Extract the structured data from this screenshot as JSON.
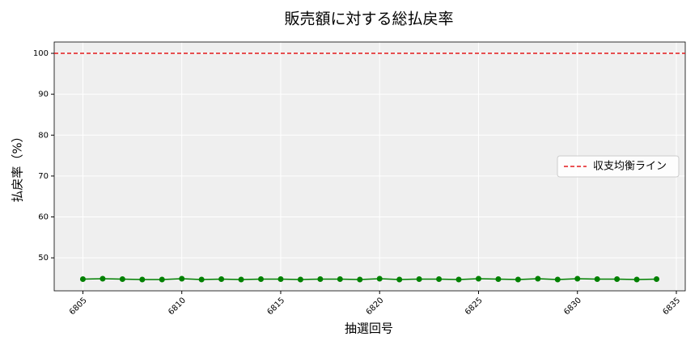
{
  "chart_data": {
    "type": "line",
    "title": "販売額に対する総払戻率",
    "x_label": "抽選回号",
    "y_label": "払戻率（%）",
    "x": [
      6805,
      6806,
      6807,
      6808,
      6809,
      6810,
      6811,
      6812,
      6813,
      6814,
      6815,
      6816,
      6817,
      6818,
      6819,
      6820,
      6821,
      6822,
      6823,
      6824,
      6825,
      6826,
      6827,
      6828,
      6829,
      6830,
      6831,
      6832,
      6833,
      6834
    ],
    "series": [
      {
        "color": "#008000",
        "values": [
          44.8,
          44.9,
          44.8,
          44.7,
          44.7,
          44.9,
          44.7,
          44.8,
          44.7,
          44.8,
          44.8,
          44.7,
          44.8,
          44.8,
          44.7,
          44.9,
          44.7,
          44.8,
          44.8,
          44.7,
          44.9,
          44.8,
          44.7,
          44.9,
          44.7,
          44.9,
          44.8,
          44.8,
          44.7,
          44.8
        ]
      }
    ],
    "hlines": [
      {
        "name": "収支均衡ライン",
        "value": 100,
        "color": "#e41a1c"
      }
    ],
    "xlim": [
      6803.55,
      6835.45
    ],
    "ylim": [
      41.93,
      102.77
    ],
    "xticks": [
      6805,
      6810,
      6815,
      6820,
      6825,
      6830,
      6835
    ],
    "yticks": [
      50,
      60,
      70,
      80,
      90,
      100
    ],
    "grid": true,
    "legend": "right"
  }
}
